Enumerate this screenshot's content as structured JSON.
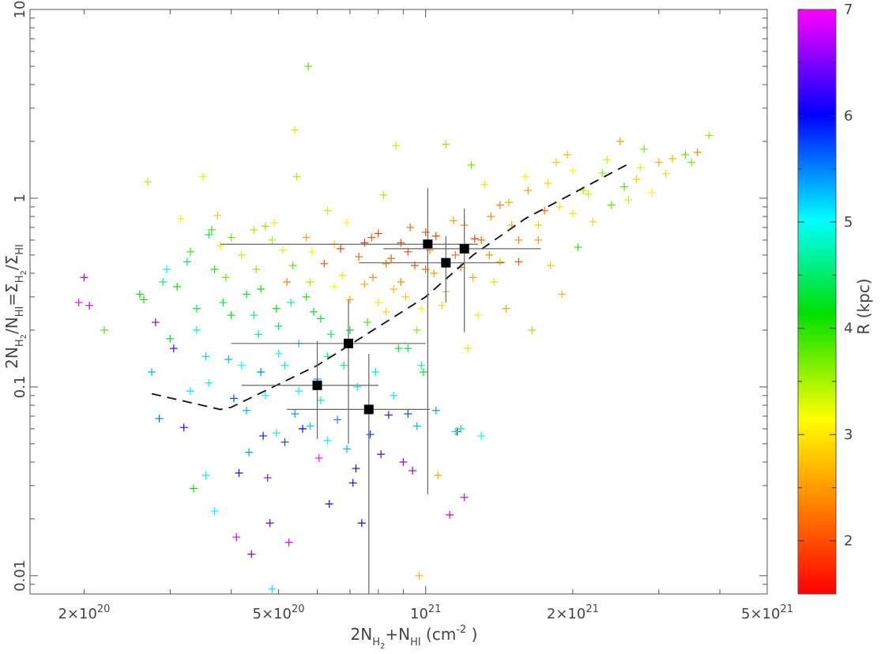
{
  "chart_data": {
    "type": "scatter",
    "xlabel": {
      "prefix": "2N",
      "sub1": "H",
      "sub1b": "2",
      "mid": "+N",
      "sub2": "HI",
      "suffix": " (cm",
      "sup": "-2",
      "end": " )"
    },
    "ylabel": {
      "a": "2N",
      "a_sub": "H",
      "a_subsub": "2",
      "b": "/N",
      "b_sub": "HI",
      "c": "=Σ",
      "c_sub": "H",
      "c_subsub": "2",
      "d": "/Σ",
      "d_sub": "HI"
    },
    "colorbar_label": "R (kpc)",
    "x_scale": "log",
    "y_scale": "log",
    "xlim": [
      1.55e+20,
      5e+21
    ],
    "ylim": [
      0.008,
      10
    ],
    "x_ticks": [
      {
        "value": 2e+20,
        "mant": "2×10",
        "exp": "20"
      },
      {
        "value": 5e+20,
        "mant": "5×10",
        "exp": "20"
      },
      {
        "value": 1e+21,
        "mant": "10",
        "exp": "21"
      },
      {
        "value": 2e+21,
        "mant": "2×10",
        "exp": "21"
      },
      {
        "value": 5e+21,
        "mant": "5×10",
        "exp": "21"
      }
    ],
    "y_ticks": [
      {
        "value": 0.01,
        "label": "0.01"
      },
      {
        "value": 0.1,
        "label": "0.1"
      },
      {
        "value": 1,
        "label": "1"
      },
      {
        "value": 10,
        "label": "10"
      }
    ],
    "colorbar": {
      "min": 1.5,
      "max": 7.0,
      "ticks": [
        {
          "value": 2,
          "label": "2"
        },
        {
          "value": 3,
          "label": "3"
        },
        {
          "value": 4,
          "label": "4"
        },
        {
          "value": 5,
          "label": "5"
        },
        {
          "value": 6,
          "label": "6"
        },
        {
          "value": 7,
          "label": "7"
        }
      ]
    },
    "points": [
      [
        1.95e+20,
        0.28,
        6.9
      ],
      [
        2e+20,
        0.38,
        6.7
      ],
      [
        2.05e+20,
        0.27,
        6.8
      ],
      [
        2.2e+20,
        0.2,
        3.8
      ],
      [
        2.6e+20,
        0.31,
        4.2
      ],
      [
        2.65e+20,
        0.29,
        4.0
      ],
      [
        2.7e+20,
        1.22,
        3.5
      ],
      [
        2.75e+20,
        0.12,
        5.3
      ],
      [
        2.8e+20,
        0.22,
        6.5
      ],
      [
        2.85e+20,
        0.068,
        5.6
      ],
      [
        2.9e+20,
        0.36,
        4.6
      ],
      [
        2.95e+20,
        0.42,
        4.9
      ],
      [
        3e+20,
        0.18,
        4.3
      ],
      [
        3.05e+20,
        0.16,
        6.3
      ],
      [
        3.1e+20,
        0.34,
        4.1
      ],
      [
        3.15e+20,
        0.78,
        3.2
      ],
      [
        3.2e+20,
        0.061,
        6.2
      ],
      [
        3.25e+20,
        0.46,
        4.5
      ],
      [
        3.3e+20,
        0.095,
        5.1
      ],
      [
        3.35e+20,
        0.029,
        4.1
      ],
      [
        3.4e+20,
        0.26,
        4.4
      ],
      [
        3.5e+20,
        1.3,
        3.3
      ],
      [
        3.55e+20,
        0.034,
        4.9
      ],
      [
        3.6e+20,
        0.64,
        4.5
      ],
      [
        3.65e+20,
        0.68,
        3.9
      ],
      [
        3.7e+20,
        0.022,
        5.0
      ],
      [
        3.75e+20,
        0.81,
        2.8
      ],
      [
        3.8e+20,
        0.56,
        3.0
      ],
      [
        3.9e+20,
        0.38,
        3.7
      ],
      [
        3.95e+20,
        0.14,
        5.3
      ],
      [
        4e+20,
        0.24,
        4.2
      ],
      [
        4.05e+20,
        0.087,
        5.7
      ],
      [
        4.1e+20,
        0.016,
        6.8
      ],
      [
        4.15e+20,
        0.035,
        6.2
      ],
      [
        4.2e+20,
        0.5,
        3.4
      ],
      [
        4.3e+20,
        0.31,
        4.3
      ],
      [
        4.35e+20,
        0.045,
        5.4
      ],
      [
        4.4e+20,
        0.013,
        6.5
      ],
      [
        4.45e+20,
        0.68,
        3.5
      ],
      [
        4.5e+20,
        0.42,
        3.6
      ],
      [
        4.55e+20,
        0.19,
        4.6
      ],
      [
        4.6e+20,
        0.12,
        5.5
      ],
      [
        4.65e+20,
        0.055,
        5.9
      ],
      [
        4.7e+20,
        0.71,
        3.6
      ],
      [
        4.75e+20,
        0.033,
        6.6
      ],
      [
        4.8e+20,
        0.019,
        6.4
      ],
      [
        4.85e+20,
        0.0085,
        5.1
      ],
      [
        4.9e+20,
        0.74,
        3.0
      ],
      [
        4.95e+20,
        0.26,
        4.1
      ],
      [
        5e+20,
        0.15,
        5.0
      ],
      [
        5.1e+20,
        0.53,
        3.3
      ],
      [
        5.15e+20,
        0.051,
        5.7
      ],
      [
        5.2e+20,
        0.36,
        2.3
      ],
      [
        5.25e+20,
        0.015,
        6.9
      ],
      [
        5.3e+20,
        0.28,
        4.7
      ],
      [
        5.4e+20,
        2.3,
        3.4
      ],
      [
        5.45e+20,
        1.3,
        3.5
      ],
      [
        5.5e+20,
        0.17,
        5.2
      ],
      [
        5.6e+20,
        0.06,
        6.0
      ],
      [
        5.7e+20,
        0.62,
        2.5
      ],
      [
        5.75e+20,
        5.0,
        3.8
      ],
      [
        5.8e+20,
        0.36,
        3.5
      ],
      [
        5.9e+20,
        0.25,
        4.2
      ],
      [
        6e+20,
        0.11,
        5.4
      ],
      [
        6.05e+20,
        0.042,
        7.0
      ],
      [
        6.1e+20,
        0.085,
        4.8
      ],
      [
        6.2e+20,
        0.45,
        2.0
      ],
      [
        6.3e+20,
        0.86,
        3.4
      ],
      [
        6.35e+20,
        0.024,
        6.2
      ],
      [
        6.4e+20,
        0.19,
        4.5
      ],
      [
        6.5e+20,
        0.34,
        3.2
      ],
      [
        6.6e+20,
        0.067,
        5.5
      ],
      [
        6.7e+20,
        0.54,
        1.9
      ],
      [
        6.8e+20,
        0.13,
        4.6
      ],
      [
        6.9e+20,
        0.74,
        3.1
      ],
      [
        7e+20,
        0.29,
        2.6
      ],
      [
        7.1e+20,
        0.031,
        6.1
      ],
      [
        7.2e+20,
        0.037,
        6.0
      ],
      [
        7.3e+20,
        0.49,
        2.2
      ],
      [
        7.4e+20,
        0.019,
        6.1
      ],
      [
        7.5e+20,
        0.58,
        1.8
      ],
      [
        7.6e+20,
        0.22,
        3.9
      ],
      [
        7.7e+20,
        0.056,
        5.8
      ],
      [
        7.8e+20,
        0.38,
        2.4
      ],
      [
        7.9e+20,
        0.12,
        5.1
      ],
      [
        8e+20,
        0.65,
        1.9
      ],
      [
        8.1e+20,
        0.044,
        6.3
      ],
      [
        8.2e+20,
        1.04,
        3.5
      ],
      [
        8.3e+20,
        0.25,
        2.9
      ],
      [
        8.4e+20,
        0.071,
        6.3
      ],
      [
        8.5e+20,
        0.48,
        2.1
      ],
      [
        8.6e+20,
        0.33,
        2.7
      ],
      [
        8.7e+20,
        1.9,
        3.4
      ],
      [
        8.8e+20,
        0.16,
        4.4
      ],
      [
        8.9e+20,
        0.58,
        2.0
      ],
      [
        9e+20,
        0.04,
        6.6
      ],
      [
        9.1e+20,
        0.3,
        2.8
      ],
      [
        9.2e+20,
        0.072,
        5.7
      ],
      [
        9.3e+20,
        0.7,
        2.2
      ],
      [
        9.4e+20,
        0.036,
        6.6
      ],
      [
        9.5e+20,
        0.44,
        2.0
      ],
      [
        9.6e+20,
        0.062,
        5.3
      ],
      [
        9.7e+20,
        0.01,
        2.7
      ],
      [
        9.8e+20,
        0.26,
        3.2
      ],
      [
        9.9e+20,
        0.12,
        4.3
      ],
      [
        1e+21,
        0.66,
        2.0
      ],
      [
        1.02e+21,
        0.53,
        2.4
      ],
      [
        1.04e+21,
        0.4,
        2.5
      ],
      [
        1.06e+21,
        0.034,
        2.6
      ],
      [
        1.08e+21,
        0.27,
        2.9
      ],
      [
        1.1e+21,
        1.93,
        3.6
      ],
      [
        1.12e+21,
        0.021,
        6.8
      ],
      [
        1.14e+21,
        0.76,
        2.5
      ],
      [
        1.16e+21,
        0.058,
        6.0
      ],
      [
        1.18e+21,
        0.43,
        2.3
      ],
      [
        1.2e+21,
        0.026,
        6.8
      ],
      [
        1.22e+21,
        0.16,
        3.4
      ],
      [
        1.24e+21,
        1.5,
        3.7
      ],
      [
        1.26e+21,
        0.61,
        1.9
      ],
      [
        1.28e+21,
        0.24,
        3.0
      ],
      [
        1.3e+21,
        0.055,
        4.9
      ],
      [
        1.32e+21,
        1.18,
        3.3
      ],
      [
        1.35e+21,
        0.5,
        2.4
      ],
      [
        1.38e+21,
        0.36,
        2.9
      ],
      [
        1.42e+21,
        0.92,
        2.3
      ],
      [
        1.46e+21,
        0.26,
        2.6
      ],
      [
        1.5e+21,
        0.72,
        2.6
      ],
      [
        1.55e+21,
        0.46,
        2.1
      ],
      [
        1.6e+21,
        1.3,
        3.1
      ],
      [
        1.65e+21,
        0.2,
        3.6
      ],
      [
        1.7e+21,
        0.6,
        2.5
      ],
      [
        1.75e+21,
        0.86,
        2.2
      ],
      [
        1.8e+21,
        0.44,
        2.8
      ],
      [
        1.85e+21,
        1.55,
        2.8
      ],
      [
        1.9e+21,
        0.31,
        2.7
      ],
      [
        1.95e+21,
        1.7,
        2.7
      ],
      [
        2e+21,
        0.83,
        3.3
      ],
      [
        2.05e+21,
        0.55,
        3.9
      ],
      [
        2.1e+21,
        1.1,
        3.5
      ],
      [
        2.2e+21,
        0.75,
        2.9
      ],
      [
        2.3e+21,
        1.36,
        3.6
      ],
      [
        2.4e+21,
        0.92,
        3.8
      ],
      [
        2.5e+21,
        2.0,
        2.5
      ],
      [
        2.6e+21,
        0.98,
        3.4
      ],
      [
        2.7e+21,
        1.26,
        2.8
      ],
      [
        2.8e+21,
        1.82,
        3.7
      ],
      [
        2.9e+21,
        1.07,
        3.1
      ],
      [
        3e+21,
        1.55,
        2.6
      ],
      [
        3.2e+21,
        1.62,
        2.7
      ],
      [
        3.4e+21,
        1.7,
        3.8
      ],
      [
        3.6e+21,
        1.75,
        2.4
      ],
      [
        3.8e+21,
        2.15,
        3.6
      ],
      [
        3.3e+20,
        0.52,
        3.9
      ],
      [
        3.4e+20,
        0.2,
        4.8
      ],
      [
        3.55e+20,
        0.145,
        5.2
      ],
      [
        3.6e+20,
        0.105,
        4.9
      ],
      [
        3.7e+20,
        0.42,
        4.0
      ],
      [
        3.85e+20,
        0.28,
        4.4
      ],
      [
        4e+20,
        0.62,
        3.7
      ],
      [
        4.2e+20,
        0.13,
        5.0
      ],
      [
        4.3e+20,
        0.075,
        5.3
      ],
      [
        4.45e+20,
        0.24,
        4.6
      ],
      [
        4.6e+20,
        0.33,
        4.1
      ],
      [
        4.7e+20,
        0.09,
        4.9
      ],
      [
        4.85e+20,
        0.6,
        3.5
      ],
      [
        5e+20,
        0.21,
        4.5
      ],
      [
        5.15e+20,
        0.13,
        4.8
      ],
      [
        5.35e+20,
        0.44,
        3.8
      ],
      [
        5.5e+20,
        0.095,
        5.0
      ],
      [
        5.7e+20,
        0.3,
        4.0
      ],
      [
        5.85e+20,
        0.52,
        3.2
      ],
      [
        6.1e+20,
        0.23,
        4.3
      ],
      [
        6.3e+20,
        0.145,
        4.6
      ],
      [
        6.5e+20,
        0.57,
        2.8
      ],
      [
        6.75e+20,
        0.39,
        3.3
      ],
      [
        7e+20,
        0.2,
        4.3
      ],
      [
        7.25e+20,
        0.1,
        4.9
      ],
      [
        7.5e+20,
        0.35,
        2.6
      ],
      [
        7.75e+20,
        0.62,
        2.0
      ],
      [
        8e+20,
        0.28,
        3.3
      ],
      [
        8.3e+20,
        0.45,
        2.3
      ],
      [
        8.6e+20,
        0.09,
        5.1
      ],
      [
        8.9e+20,
        0.36,
        2.4
      ],
      [
        9.2e+20,
        0.52,
        2.0
      ],
      [
        9.6e+20,
        0.2,
        3.6
      ],
      [
        1e+21,
        0.42,
        2.2
      ],
      [
        1.05e+21,
        0.63,
        1.9
      ],
      [
        1.1e+21,
        0.32,
        2.7
      ],
      [
        1.15e+21,
        0.5,
        2.2
      ],
      [
        1.2e+21,
        0.72,
        2.3
      ],
      [
        1.25e+21,
        0.38,
        2.6
      ],
      [
        1.3e+21,
        0.6,
        2.1
      ],
      [
        1.36e+21,
        0.8,
        2.4
      ],
      [
        1.42e+21,
        0.46,
        2.7
      ],
      [
        1.48e+21,
        0.95,
        2.6
      ],
      [
        1.55e+21,
        0.6,
        2.4
      ],
      [
        1.62e+21,
        1.1,
        2.5
      ],
      [
        1.7e+21,
        0.72,
        2.8
      ],
      [
        1.78e+21,
        1.2,
        2.9
      ],
      [
        1.88e+21,
        0.9,
        3.0
      ],
      [
        2e+21,
        1.4,
        3.2
      ],
      [
        2.15e+21,
        1.05,
        3.4
      ],
      [
        2.35e+21,
        1.6,
        3.4
      ],
      [
        2.55e+21,
        1.15,
        3.9
      ],
      [
        2.75e+21,
        1.45,
        3.3
      ],
      [
        3.1e+21,
        1.35,
        2.9
      ],
      [
        3.5e+21,
        1.55,
        3.7
      ],
      [
        5.8e+20,
        0.062,
        5.2
      ],
      [
        6.3e+20,
        0.052,
        5.0
      ],
      [
        6.9e+20,
        0.047,
        5.3
      ],
      [
        5.4e+20,
        0.072,
        5.4
      ],
      [
        4.95e+20,
        0.057,
        4.9
      ],
      [
        1.05e+21,
        0.075,
        5.4
      ],
      [
        1.15e+21,
        0.058,
        4.7
      ],
      [
        1.18e+21,
        0.06,
        4.6
      ],
      [
        9.8e+20,
        0.13,
        4.8
      ],
      [
        9.2e+20,
        0.16,
        4.4
      ]
    ],
    "binned_points": [
      {
        "x": 6e+20,
        "y": 0.102,
        "xerr": [
          4.2e+20,
          8e+20
        ],
        "yerr": [
          0.053,
          0.175
        ]
      },
      {
        "x": 6.95e+20,
        "y": 0.17,
        "xerr": [
          4e+20,
          1e+21
        ],
        "yerr": [
          0.05,
          0.29
        ]
      },
      {
        "x": 7.65e+20,
        "y": 0.076,
        "xerr": [
          5.2e+20,
          1.02e+21
        ],
        "yerr": [
          0.008,
          0.15
        ]
      },
      {
        "x": 1.01e+21,
        "y": 0.57,
        "xerr": [
          3.8e+20,
          1.28e+21
        ],
        "yerr": [
          0.027,
          1.13
        ]
      },
      {
        "x": 1.1e+21,
        "y": 0.455,
        "xerr": [
          7.3e+20,
          1.45e+21
        ],
        "yerr": [
          0.28,
          0.63
        ]
      },
      {
        "x": 1.2e+21,
        "y": 0.54,
        "xerr": [
          8.2e+20,
          1.72e+21
        ],
        "yerr": [
          0.195,
          0.88
        ]
      }
    ],
    "dashed_fit": [
      [
        2.75e+20,
        0.092
      ],
      [
        3.8e+20,
        0.076
      ],
      [
        4e+20,
        0.078
      ],
      [
        6e+20,
        0.13
      ],
      [
        1e+21,
        0.3
      ],
      [
        1.25e+21,
        0.5
      ],
      [
        1.6e+21,
        0.78
      ],
      [
        2.6e+21,
        1.52
      ]
    ],
    "grid": false
  }
}
